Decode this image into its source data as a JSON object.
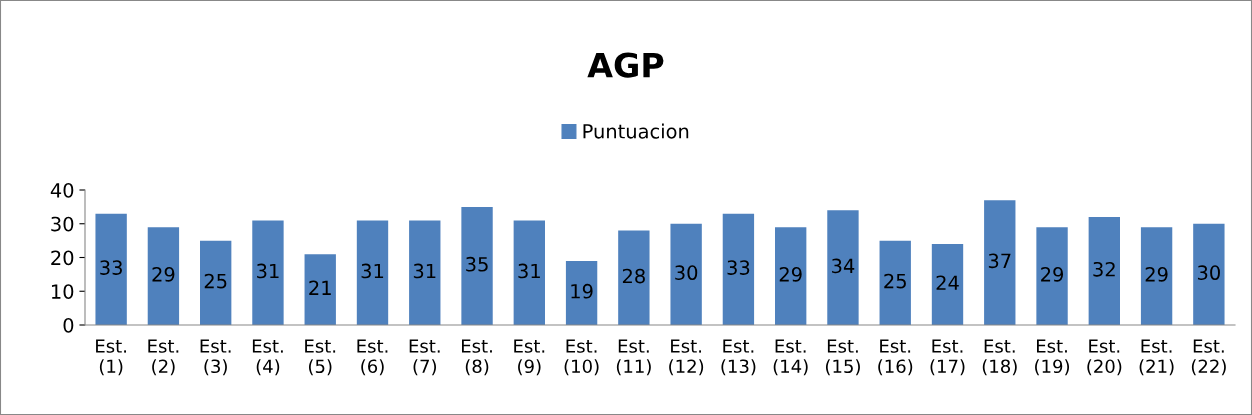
{
  "chart_data": {
    "type": "bar",
    "title": "AGP",
    "categories": [
      "Est.\n(1)",
      "Est.\n(2)",
      "Est.\n(3)",
      "Est.\n(4)",
      "Est.\n(5)",
      "Est.\n(6)",
      "Est.\n(7)",
      "Est.\n(8)",
      "Est.\n(9)",
      "Est.\n(10)",
      "Est.\n(11)",
      "Est.\n(12)",
      "Est.\n(13)",
      "Est.\n(14)",
      "Est.\n(15)",
      "Est.\n(16)",
      "Est.\n(17)",
      "Est.\n(18)",
      "Est.\n(19)",
      "Est.\n(20)",
      "Est.\n(21)",
      "Est.\n(22)"
    ],
    "series": [
      {
        "name": "Puntuacion",
        "color": "#4f81bd",
        "values": [
          33,
          29,
          25,
          31,
          21,
          31,
          31,
          35,
          31,
          19,
          28,
          30,
          33,
          29,
          34,
          25,
          24,
          37,
          29,
          32,
          29,
          30
        ]
      }
    ],
    "ylim": [
      0,
      40
    ],
    "yticks": [
      0,
      10,
      20,
      30,
      40
    ],
    "grid": false,
    "legend": "top",
    "data_labels": true
  }
}
